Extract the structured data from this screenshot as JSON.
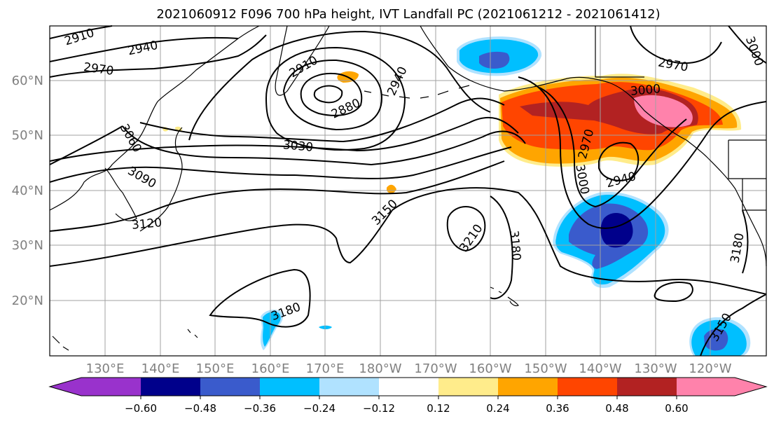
{
  "title": "2021060912 F096 700 hPa height, IVT Landfall PC (2021061212 - 2021061412)",
  "map": {
    "lat_labels": [
      "60°N",
      "50°N",
      "40°N",
      "30°N",
      "20°N"
    ],
    "lon_labels": [
      "130°E",
      "140°E",
      "150°E",
      "160°E",
      "170°E",
      "180°W",
      "170°W",
      "160°W",
      "150°W",
      "140°W",
      "130°W",
      "120°W"
    ],
    "gridlines": true,
    "contour_labels": [
      "2910",
      "2940",
      "2970",
      "2910",
      "2880",
      "2940",
      "3060",
      "3090",
      "3030",
      "3120",
      "3150",
      "3210",
      "3180",
      "3180",
      "3000",
      "2970",
      "2940",
      "3000",
      "2970",
      "3000",
      "3180",
      "3150"
    ],
    "fill_colors": {
      "neg_060": "#9932CC",
      "neg_048": "#00008B",
      "neg_036": "#3A5BCC",
      "neg_024": "#00BFFF",
      "neg_012": "#B0E2FF",
      "neutral": "#FFFFFF",
      "pos_012": "#FFEC8B",
      "pos_024": "#FFA500",
      "pos_036": "#FF4500",
      "pos_048": "#B22222",
      "pos_060": "#FF82AB"
    }
  },
  "colorbar": {
    "tick_labels": [
      "−0.60",
      "−0.48",
      "−0.36",
      "−0.24",
      "−0.12",
      "0.12",
      "0.24",
      "0.36",
      "0.48",
      "0.60"
    ],
    "colors": [
      "#9932CC",
      "#00008B",
      "#3A5BCC",
      "#00BFFF",
      "#B0E2FF",
      "#FFFFFF",
      "#FFEC8B",
      "#FFA500",
      "#FF4500",
      "#B22222",
      "#FF82AB"
    ]
  }
}
